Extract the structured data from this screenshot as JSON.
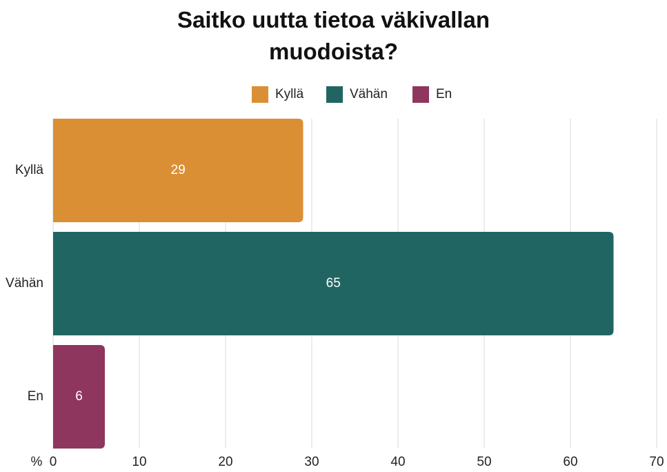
{
  "chart_data": {
    "type": "barh",
    "title": "Saitko uutta tietoa väkivallan muodoista?",
    "categories": [
      "Kyllä",
      "Vähän",
      "En"
    ],
    "values": [
      29,
      65,
      6
    ],
    "colors": [
      "#db8f35",
      "#216563",
      "#8f365e"
    ],
    "xlabel": "%",
    "xlim": [
      0,
      70
    ],
    "xticks": [
      0,
      10,
      20,
      30,
      40,
      50,
      60,
      70
    ],
    "grid": true,
    "legend": "top"
  }
}
